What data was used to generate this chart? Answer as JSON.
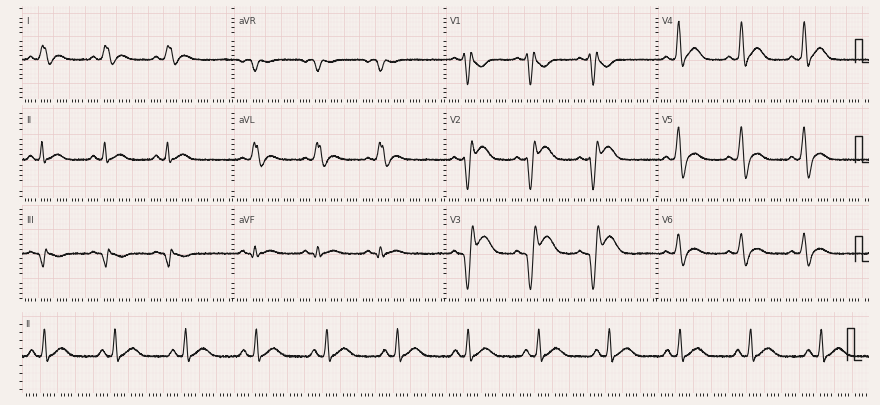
{
  "bg_color": "#f5f0ec",
  "grid_major_color": "#e8c8c8",
  "grid_minor_color": "#f0dede",
  "line_color": "#1a1a1a",
  "line_width": 0.8,
  "fig_width": 8.8,
  "fig_height": 4.05,
  "dpi": 100,
  "fs": 500,
  "rr": 0.8,
  "row_labels": [
    [
      "I",
      "aVR",
      "V1",
      "V4"
    ],
    [
      "II",
      "aVL",
      "V2",
      "V5"
    ],
    [
      "III",
      "aVF",
      "V3",
      "V6"
    ],
    [
      "II"
    ]
  ],
  "label_fontsize": 6.5,
  "label_color": "#444444"
}
